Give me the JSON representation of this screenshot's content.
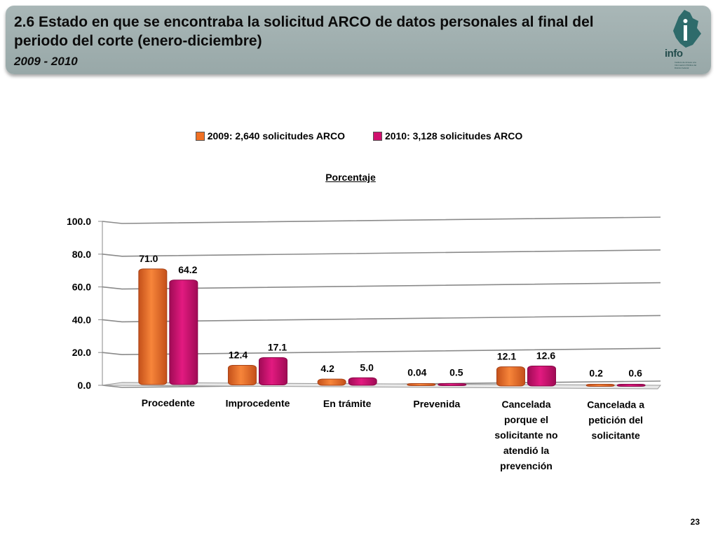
{
  "header": {
    "title": "2.6 Estado en que se encontraba la solicitud ARCO de datos personales al final del periodo del corte (enero-diciembre)",
    "subtitle": "2009 - 2010",
    "logo_text": "info",
    "logo_small_text": "Instituto de Acceso a la Información Pública del Distrito Federal"
  },
  "page_number": "23",
  "colors": {
    "series_2009": "#f07023",
    "series_2010": "#d0106e",
    "header_bg": "#a3b2b2"
  },
  "chart_data": {
    "type": "bar",
    "title": "Porcentaje",
    "categories": [
      "Procedente",
      "Improcedente",
      "En trámite",
      "Prevenida",
      "Cancelada porque el solicitante no atendió la prevención",
      "Cancelada a petición del solicitante"
    ],
    "category_lines": [
      [
        "Procedente"
      ],
      [
        "Improcedente"
      ],
      [
        "En trámite"
      ],
      [
        "Prevenida"
      ],
      [
        "Cancelada",
        "porque el",
        "solicitante no",
        "atendió la",
        "prevención"
      ],
      [
        "Cancelada a",
        "petición del",
        "solicitante"
      ]
    ],
    "series": [
      {
        "name": "2009: 2,640 solicitudes ARCO",
        "values": [
          71.0,
          12.4,
          4.2,
          0.04,
          12.1,
          0.2
        ],
        "labels": [
          "71.0",
          "12.4",
          "4.2",
          "0.04",
          "12.1",
          "0.2"
        ]
      },
      {
        "name": "2010: 3,128 solicitudes ARCO",
        "values": [
          64.2,
          17.1,
          5.0,
          0.5,
          12.6,
          0.6
        ],
        "labels": [
          "64.2",
          "17.1",
          "5.0",
          "0.5",
          "12.6",
          "0.6"
        ]
      }
    ],
    "yticks": [
      "0.0",
      "20.0",
      "40.0",
      "60.0",
      "80.0",
      "100.0"
    ],
    "ylim": [
      0,
      100
    ],
    "grid": true,
    "legend_position": "top"
  }
}
